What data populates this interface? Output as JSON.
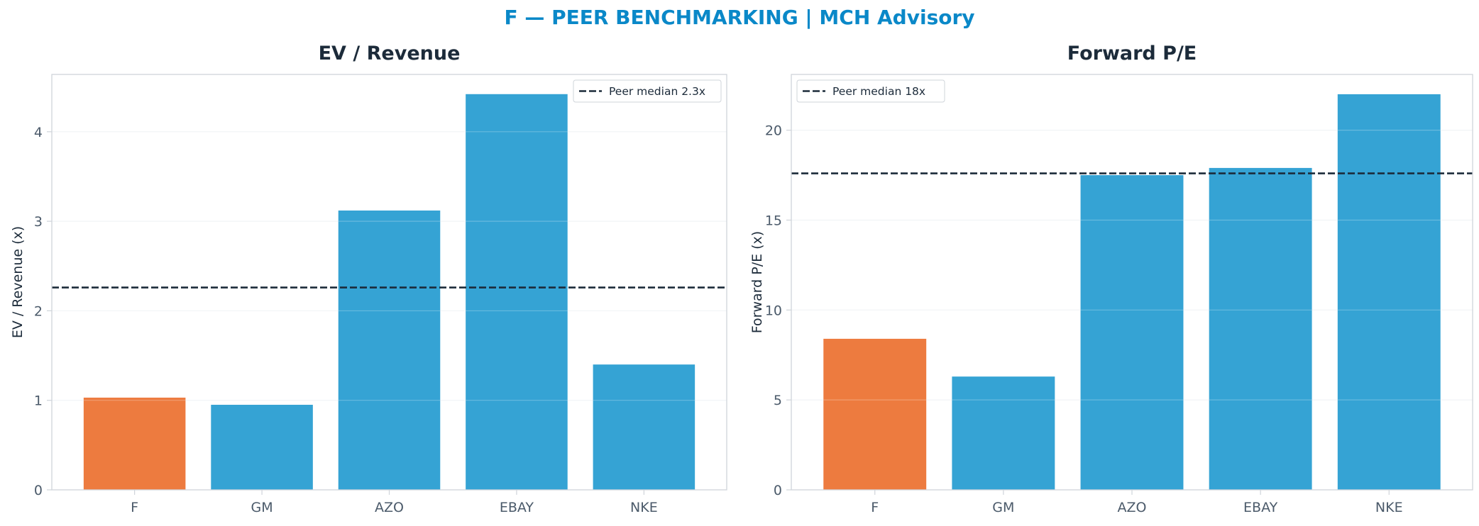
{
  "suptitle": "F — PEER BENCHMARKING | MCH Advisory",
  "colors": {
    "title": "#0a88c8",
    "highlight": "#ed7b3f",
    "peer": "#35a3d4",
    "median": "#1c2b3a",
    "axis": "#cfd4da",
    "grid": "#eef1f4"
  },
  "chart_data": [
    {
      "type": "bar",
      "title": "EV / Revenue",
      "ylabel": "EV / Revenue (x)",
      "categories": [
        "F",
        "GM",
        "AZO",
        "EBAY",
        "NKE"
      ],
      "values": [
        1.03,
        0.95,
        3.12,
        4.42,
        1.4
      ],
      "highlight": "F",
      "ylim": [
        0,
        4.64
      ],
      "yticks": [
        0,
        1,
        2,
        3,
        4
      ],
      "grid": true,
      "median": {
        "value": 2.26,
        "label": "Peer median 2.3x"
      },
      "legend": "top-right"
    },
    {
      "type": "bar",
      "title": "Forward P/E",
      "ylabel": "Forward P/E (x)",
      "categories": [
        "F",
        "GM",
        "AZO",
        "EBAY",
        "NKE"
      ],
      "values": [
        8.4,
        6.3,
        17.5,
        17.9,
        22.0
      ],
      "highlight": "F",
      "ylim": [
        0,
        23.1
      ],
      "yticks": [
        0,
        5,
        10,
        15,
        20
      ],
      "grid": true,
      "median": {
        "value": 17.6,
        "label": "Peer median 18x"
      },
      "legend": "top-left"
    }
  ]
}
